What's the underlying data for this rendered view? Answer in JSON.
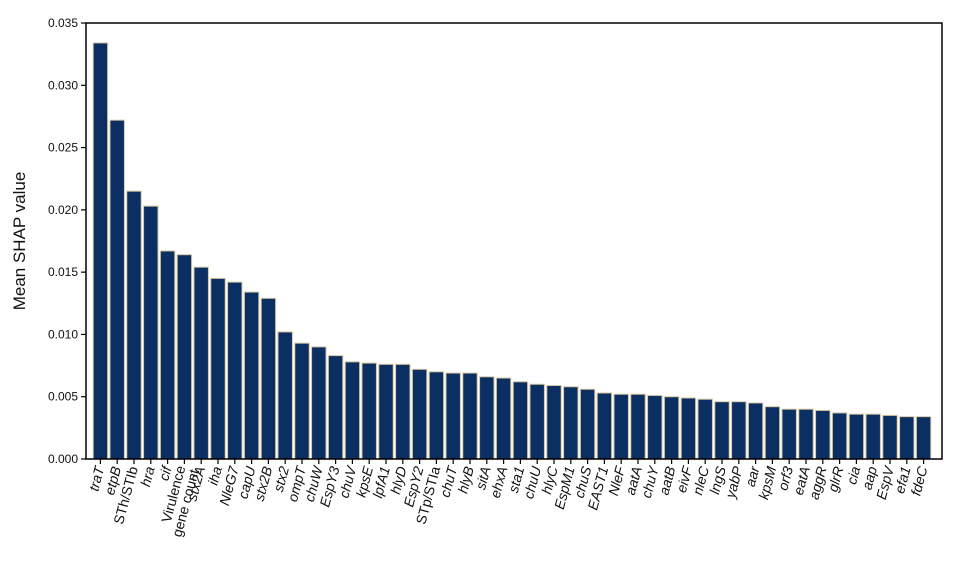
{
  "colors": {
    "bar_fill": "#0b2f63",
    "bar_edge": "#d9c9a3",
    "axis": "#000000"
  },
  "chart_data": {
    "type": "bar",
    "title": "",
    "xlabel": "",
    "ylabel": "Mean SHAP value",
    "ylim": [
      0,
      0.035
    ],
    "yticks": [
      0.0,
      0.005,
      0.01,
      0.015,
      0.02,
      0.025,
      0.03,
      0.035
    ],
    "ytick_labels": [
      "0.000",
      "0.005",
      "0.010",
      "0.015",
      "0.020",
      "0.025",
      "0.030",
      "0.035"
    ],
    "grid": false,
    "legend": "none",
    "categories": [
      {
        "label": "traT",
        "italic": true
      },
      {
        "label": "etpB",
        "italic": true
      },
      {
        "label": "STh/STIb",
        "italic": false
      },
      {
        "label": "hra",
        "italic": true
      },
      {
        "label": "cif",
        "italic": true
      },
      {
        "label": "Virulence\ngene count",
        "italic": false
      },
      {
        "label": "stx2A",
        "italic": true
      },
      {
        "label": "iha",
        "italic": true
      },
      {
        "label": "NleG7",
        "italic": true
      },
      {
        "label": "capU",
        "italic": true
      },
      {
        "label": "stx2B",
        "italic": true
      },
      {
        "label": "stx2",
        "italic": true
      },
      {
        "label": "ompT",
        "italic": true
      },
      {
        "label": "chuW",
        "italic": true
      },
      {
        "label": "EspY3",
        "italic": true
      },
      {
        "label": "chuV",
        "italic": true
      },
      {
        "label": "kpsE",
        "italic": true
      },
      {
        "label": "lpfA1",
        "italic": true
      },
      {
        "label": "hlyD",
        "italic": true
      },
      {
        "label": "EspY2",
        "italic": true
      },
      {
        "label": "STp/STIa",
        "italic": false
      },
      {
        "label": "chuT",
        "italic": true
      },
      {
        "label": "hlyB",
        "italic": true
      },
      {
        "label": "sitA",
        "italic": true
      },
      {
        "label": "ehxA",
        "italic": true
      },
      {
        "label": "sta1",
        "italic": true
      },
      {
        "label": "chuU",
        "italic": true
      },
      {
        "label": "hlyC",
        "italic": true
      },
      {
        "label": "EspM1",
        "italic": true
      },
      {
        "label": "chuS",
        "italic": true
      },
      {
        "label": "EAST1",
        "italic": true
      },
      {
        "label": "NleF",
        "italic": true
      },
      {
        "label": "aatA",
        "italic": true
      },
      {
        "label": "chuY",
        "italic": true
      },
      {
        "label": "aatB",
        "italic": true
      },
      {
        "label": "eivF",
        "italic": true
      },
      {
        "label": "nleC",
        "italic": true
      },
      {
        "label": "lngS",
        "italic": true
      },
      {
        "label": "yabP",
        "italic": true
      },
      {
        "label": "aar",
        "italic": true
      },
      {
        "label": "kpsM",
        "italic": true
      },
      {
        "label": "orf3",
        "italic": true
      },
      {
        "label": "eatA",
        "italic": true
      },
      {
        "label": "aggR",
        "italic": true
      },
      {
        "label": "glrR",
        "italic": true
      },
      {
        "label": "cia",
        "italic": true
      },
      {
        "label": "aap",
        "italic": true
      },
      {
        "label": "EspV",
        "italic": true
      },
      {
        "label": "efa1",
        "italic": true
      },
      {
        "label": "fdeC",
        "italic": true
      }
    ],
    "values": [
      0.0334,
      0.0272,
      0.0215,
      0.0203,
      0.0167,
      0.0164,
      0.0154,
      0.0145,
      0.0142,
      0.0134,
      0.0129,
      0.0102,
      0.0093,
      0.009,
      0.0083,
      0.0078,
      0.0077,
      0.0076,
      0.0076,
      0.0072,
      0.007,
      0.0069,
      0.0069,
      0.0066,
      0.0065,
      0.0062,
      0.006,
      0.0059,
      0.0058,
      0.0056,
      0.0053,
      0.0052,
      0.0052,
      0.0051,
      0.005,
      0.0049,
      0.0048,
      0.0046,
      0.0046,
      0.0045,
      0.0042,
      0.004,
      0.004,
      0.0039,
      0.0037,
      0.0036,
      0.0036,
      0.0035,
      0.0034,
      0.0034
    ]
  }
}
